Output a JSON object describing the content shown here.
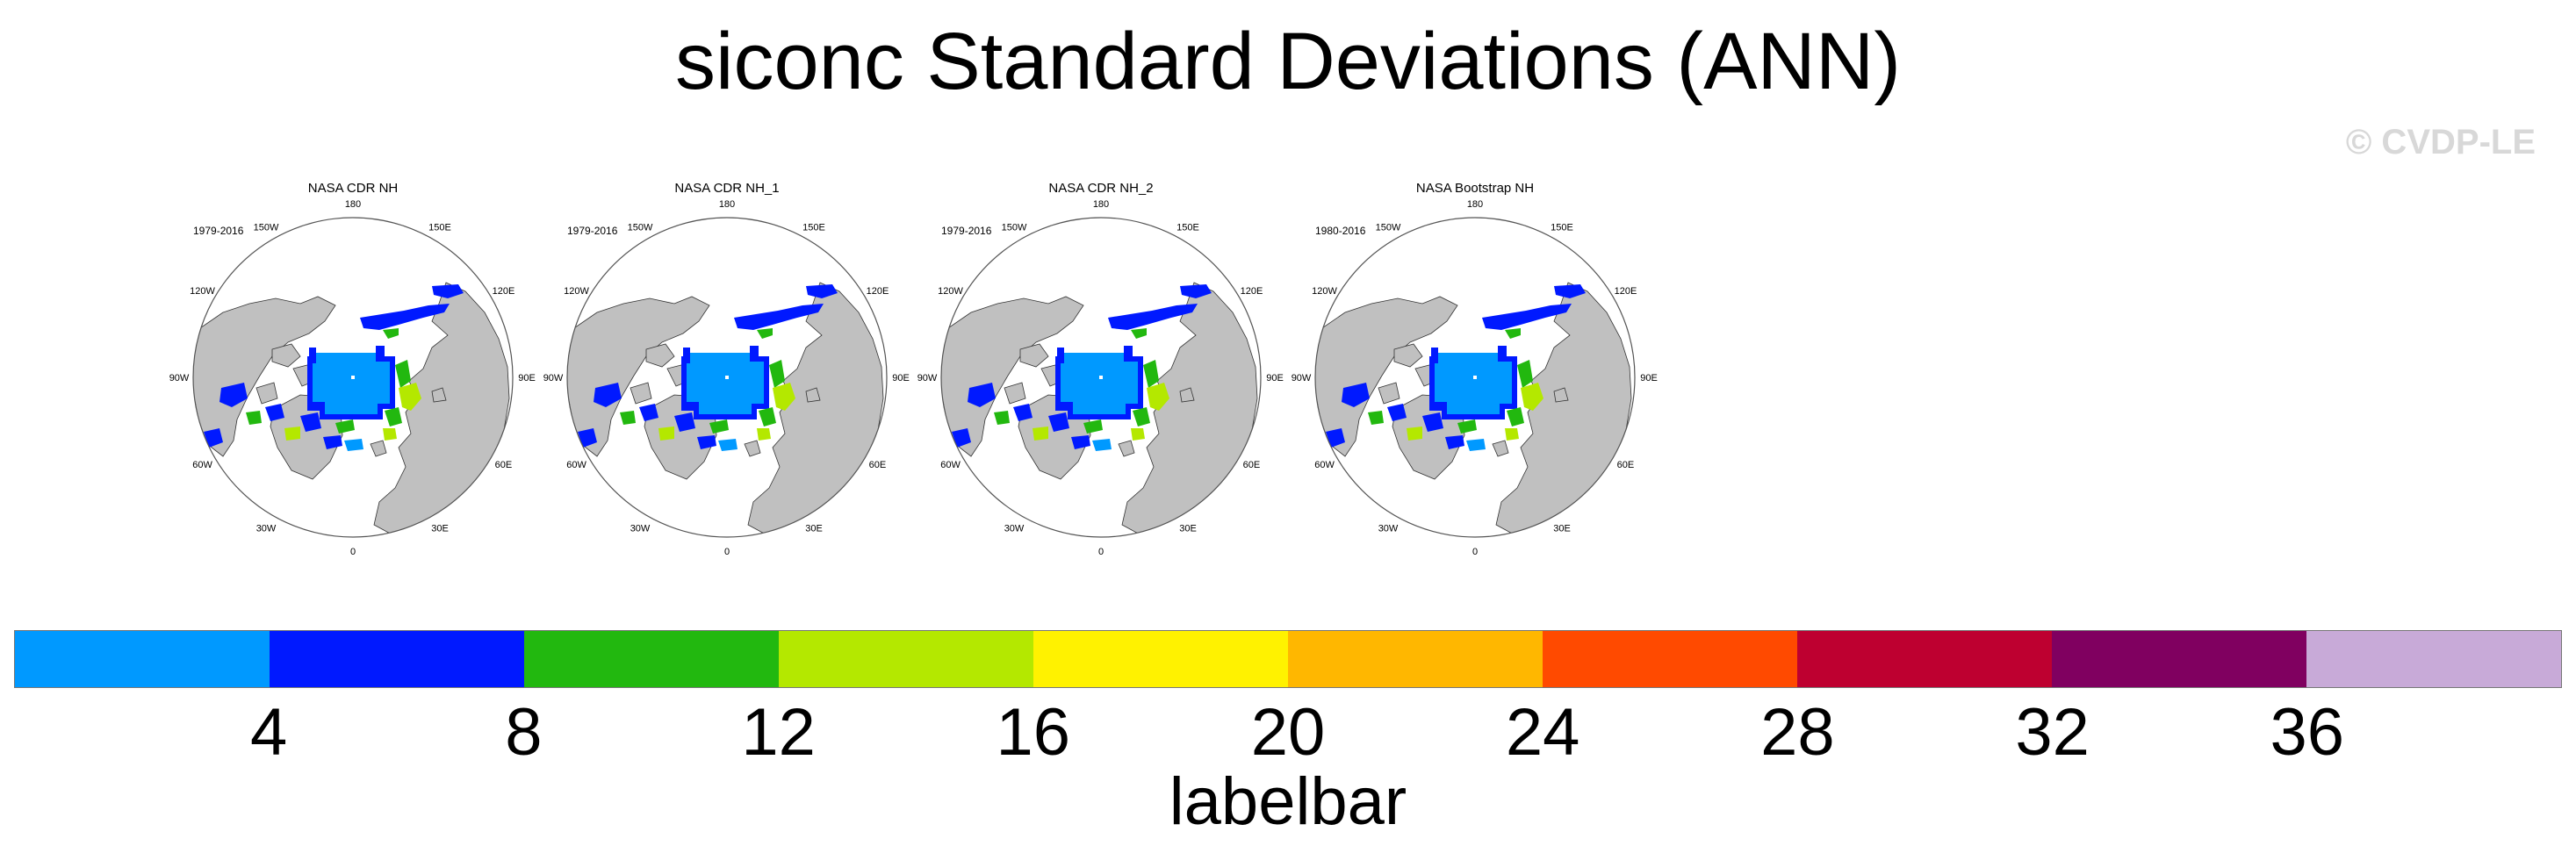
{
  "title": "siconc Standard Deviations (ANN)",
  "watermark": "© CVDP-LE",
  "panels": [
    {
      "title": "NASA CDR NH",
      "period": "1979-2016"
    },
    {
      "title": "NASA CDR NH_1",
      "period": "1979-2016"
    },
    {
      "title": "NASA CDR NH_2",
      "period": "1979-2016"
    },
    {
      "title": "NASA Bootstrap NH",
      "period": "1980-2016"
    }
  ],
  "longitude_labels": [
    "180",
    "150E",
    "120E",
    "90E",
    "60E",
    "30E",
    "0",
    "30W",
    "60W",
    "90W",
    "120W",
    "150W"
  ],
  "colors": {
    "land": "#c0c0c0",
    "ocean": "#ffffff",
    "levels": [
      "#0099ff",
      "#0019ff",
      "#22b80f",
      "#b4e800",
      "#fff200",
      "#ffb700",
      "#ff4a00",
      "#be0030",
      "#800060",
      "#c8aad8"
    ]
  },
  "labelbar": {
    "ticks": [
      "4",
      "8",
      "12",
      "16",
      "20",
      "24",
      "28",
      "32",
      "36"
    ],
    "label": "labelbar"
  }
}
